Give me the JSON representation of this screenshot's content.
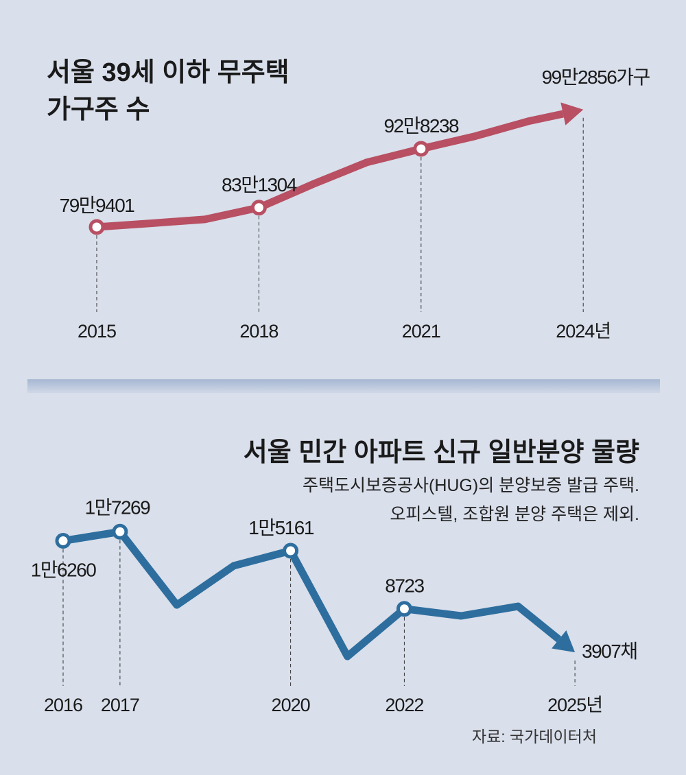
{
  "chart_data": [
    {
      "type": "line",
      "title": "서울 39세 이하 무주택 가구주 수",
      "title_lines": [
        "서울 39세 이하 무주택",
        "가구주 수"
      ],
      "unit": "가구",
      "color": "#b84f62",
      "x": [
        2015,
        2016,
        2017,
        2018,
        2019,
        2020,
        2021,
        2022,
        2023,
        2024
      ],
      "values": [
        799401,
        805500,
        812000,
        831304,
        870000,
        906000,
        928238,
        949000,
        974000,
        992856
      ],
      "labeled": [
        {
          "year": 2015,
          "label": "79만9401"
        },
        {
          "year": 2018,
          "label": "83만1304"
        },
        {
          "year": 2021,
          "label": "92만8238"
        },
        {
          "year": 2024,
          "label": "99만2856가구"
        }
      ],
      "tick_labels": [
        "2015",
        "2018",
        "2021",
        "2024년"
      ],
      "tick_years": [
        2015,
        2018,
        2021,
        2024
      ]
    },
    {
      "type": "line",
      "title": "서울 민간 아파트 신규 일반분양 물량",
      "subtitle_lines": [
        "주택도시보증공사(HUG)의 분양보증 발급 주택.",
        "오피스텔, 조합원 분양 주택은 제외."
      ],
      "unit": "채",
      "color": "#2e6e9e",
      "x": [
        2016,
        2017,
        2018,
        2019,
        2020,
        2021,
        2022,
        2023,
        2024,
        2025
      ],
      "values": [
        16260,
        17269,
        9150,
        13490,
        15161,
        3450,
        8723,
        7940,
        9000,
        3907
      ],
      "labeled": [
        {
          "year": 2016,
          "label": "1만6260"
        },
        {
          "year": 2017,
          "label": "1만7269"
        },
        {
          "year": 2020,
          "label": "1만5161"
        },
        {
          "year": 2022,
          "label": "8723"
        },
        {
          "year": 2025,
          "label": "3907채"
        }
      ],
      "tick_labels": [
        "2016",
        "2017",
        "2020",
        "2022",
        "2025년"
      ],
      "tick_years": [
        2016,
        2017,
        2020,
        2022,
        2025
      ]
    }
  ],
  "source": "자료: 국가데이터처"
}
